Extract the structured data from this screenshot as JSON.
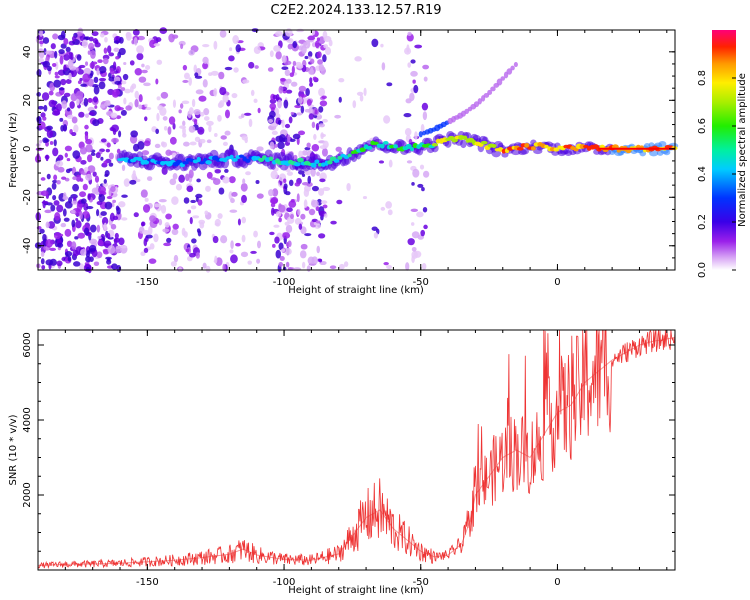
{
  "title": "C2E2.2024.133.12.57.R19",
  "chart_data": [
    {
      "type": "heatmap",
      "name": "spectrogram",
      "xlabel": "Height of straight line (km)",
      "ylabel": "Frequency (Hz)",
      "xlim": [
        -190,
        43
      ],
      "ylim": [
        -50,
        49
      ],
      "xticks": [
        -150,
        -100,
        -50,
        0
      ],
      "yticks": [
        -40,
        -20,
        0,
        20,
        40
      ],
      "xtick_labels": [
        "-150",
        "-100",
        "-50",
        "0"
      ],
      "ytick_labels": [
        "-40",
        "-20",
        "0",
        "20",
        "40"
      ],
      "colorbar": {
        "label": "Normalized spectral amplitude",
        "range": [
          0,
          1
        ],
        "ticks": [
          0.0,
          0.2,
          0.4,
          0.6,
          0.8
        ],
        "tick_labels": [
          "0.0",
          "0.2",
          "0.4",
          "0.6",
          "0.8"
        ]
      },
      "ridge": {
        "x": [
          -160,
          -150,
          -140,
          -130,
          -120,
          -110,
          -100,
          -90,
          -85,
          -80,
          -75,
          -70,
          -65,
          -60,
          -55,
          -50,
          -45,
          -40,
          -35,
          -30,
          -25,
          -20,
          -15,
          -10,
          -5,
          0,
          5,
          10,
          15,
          20,
          30,
          43
        ],
        "y": [
          -4,
          -5,
          -6,
          -5,
          -4,
          -4,
          -5,
          -6,
          -6,
          -4,
          -2,
          1,
          2,
          1,
          0,
          1,
          2,
          4,
          4,
          3,
          1,
          -1,
          0,
          1,
          1,
          0,
          0,
          0,
          0,
          0,
          0,
          0
        ]
      },
      "side_branch": {
        "x": [
          -50,
          -45,
          -40,
          -35,
          -30,
          -25,
          -20,
          -15
        ],
        "y": [
          6,
          8,
          11,
          14,
          18,
          23,
          29,
          35
        ]
      }
    },
    {
      "type": "line",
      "name": "snr",
      "xlabel": "Height of straight line (km)",
      "ylabel": "SNR (10 * v/v)",
      "xlim": [
        -190,
        43
      ],
      "ylim": [
        0,
        6400
      ],
      "xticks": [
        -150,
        -100,
        -50,
        0
      ],
      "yticks": [
        2000,
        4000,
        6000
      ],
      "xtick_labels": [
        "-150",
        "-100",
        "-50",
        "0"
      ],
      "ytick_labels": [
        "2000",
        "4000",
        "6000"
      ],
      "color": "#ee3333",
      "x": [
        -190,
        -180,
        -170,
        -160,
        -150,
        -140,
        -130,
        -120,
        -115,
        -110,
        -100,
        -90,
        -80,
        -75,
        -70,
        -65,
        -60,
        -55,
        -50,
        -45,
        -40,
        -35,
        -32,
        -30,
        -25,
        -20,
        -15,
        -10,
        -5,
        0,
        5,
        10,
        15,
        20,
        25,
        30,
        35,
        43
      ],
      "y": [
        120,
        150,
        160,
        180,
        220,
        260,
        330,
        420,
        560,
        400,
        280,
        260,
        430,
        900,
        1400,
        1600,
        1100,
        800,
        500,
        350,
        400,
        700,
        1300,
        2000,
        2500,
        3000,
        3200,
        3000,
        3600,
        4200,
        4400,
        5000,
        5300,
        5600,
        5800,
        6000,
        6100,
        6200
      ]
    }
  ]
}
